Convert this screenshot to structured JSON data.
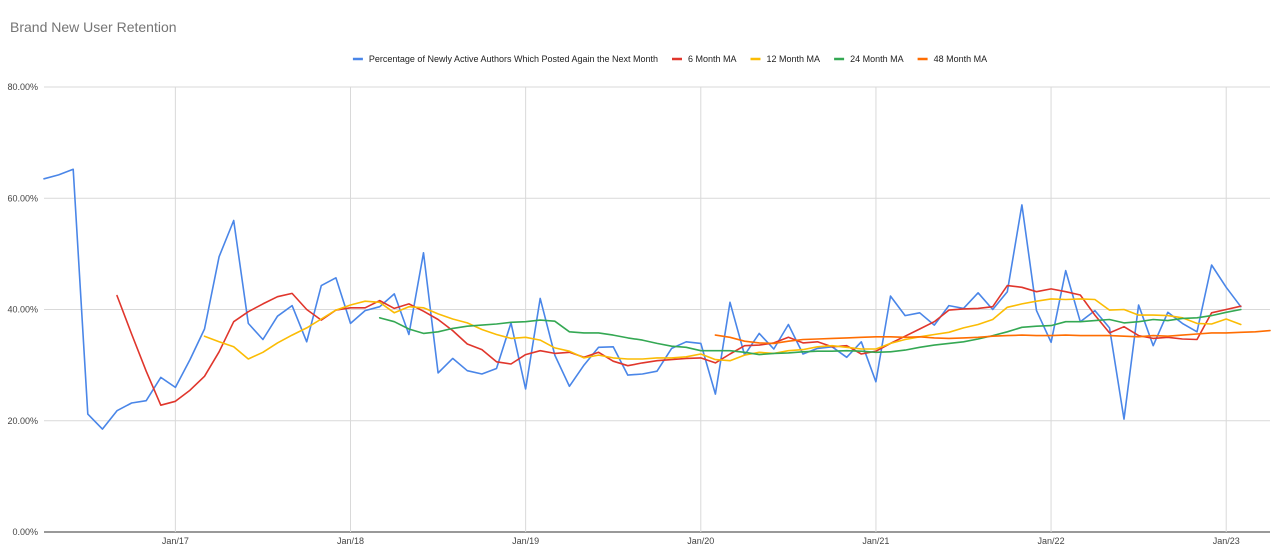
{
  "chart_data": {
    "type": "line",
    "title": "Brand New User Retention",
    "xlabel": "",
    "ylabel": "",
    "ylim": [
      0,
      80
    ],
    "yticks": [
      0,
      20,
      40,
      60,
      80
    ],
    "ytick_labels": [
      "0.00%",
      "20.00%",
      "40.00%",
      "60.00%",
      "80.00%"
    ],
    "x_range": [
      "2016-04",
      "2023-04"
    ],
    "xtick_dates": [
      "2017-01",
      "2018-01",
      "2019-01",
      "2020-01",
      "2021-01",
      "2022-01",
      "2023-01"
    ],
    "xtick_labels": [
      "Jan/17",
      "Jan/18",
      "Jan/19",
      "Jan/20",
      "Jan/21",
      "Jan/22",
      "Jan/23"
    ],
    "grid": true,
    "legend_position": "top-center",
    "series": [
      {
        "name": "Percentage of Newly Active Authors Which Posted Again the Next Month",
        "color": "#4a86e8",
        "start": "2016-04",
        "values": [
          63.5,
          64.2,
          65.2,
          21.2,
          18.5,
          21.8,
          23.2,
          23.6,
          27.8,
          26.0,
          31.0,
          36.5,
          49.5,
          56.0,
          37.5,
          34.6,
          38.8,
          40.7,
          34.2,
          44.3,
          45.7,
          37.5,
          39.8,
          40.5,
          42.8,
          35.5,
          50.2,
          28.6,
          31.2,
          29.0,
          28.4,
          29.4,
          37.6,
          25.7,
          42.0,
          31.8,
          26.2,
          30.0,
          33.2,
          33.3,
          28.2,
          28.4,
          28.9,
          33.0,
          34.2,
          33.9,
          24.8,
          41.3,
          31.8,
          35.7,
          32.9,
          37.3,
          32.0,
          33.0,
          33.3,
          31.4,
          34.2,
          27.0,
          42.4,
          38.9,
          39.4,
          37.2,
          40.7,
          40.2,
          43.0,
          40.0,
          43.2,
          58.8,
          39.8,
          34.1,
          47.0,
          37.8,
          39.8,
          36.7,
          20.3,
          40.8,
          33.5,
          39.5,
          37.5,
          36.0,
          48.0,
          44.0,
          40.5
        ]
      },
      {
        "name": "6 Month MA",
        "color": "#e0362c",
        "start": "2016-09",
        "values": [
          42.5,
          35.6,
          28.9,
          22.8,
          23.5,
          25.5,
          28.0,
          32.4,
          37.8,
          39.6,
          41.0,
          42.3,
          42.9,
          40.0,
          38.1,
          39.9,
          40.3,
          40.3,
          41.6,
          40.2,
          41.0,
          39.7,
          38.2,
          36.2,
          33.8,
          32.8,
          30.6,
          30.2,
          31.9,
          32.6,
          32.1,
          32.3,
          31.4,
          32.3,
          30.7,
          29.9,
          30.4,
          30.8,
          31.0,
          31.2,
          31.3,
          30.4,
          32.0,
          33.5,
          33.6,
          34.0,
          35.0,
          34.0,
          34.2,
          33.3,
          33.5,
          32.0,
          32.5,
          33.9,
          35.2,
          36.5,
          37.8,
          39.9,
          40.1,
          40.2,
          40.5,
          44.3,
          44.0,
          43.2,
          43.7,
          43.2,
          42.6,
          39.0,
          35.8,
          36.9,
          35.3,
          34.8,
          35.0,
          34.7,
          34.6,
          39.4,
          40.0,
          40.6
        ]
      },
      {
        "name": "12 Month MA",
        "color": "#fbbc04",
        "start": "2017-03",
        "values": [
          35.2,
          34.2,
          33.3,
          31.1,
          32.3,
          34.0,
          35.4,
          36.7,
          38.3,
          39.9,
          40.8,
          41.5,
          41.3,
          39.4,
          40.5,
          40.3,
          39.2,
          38.3,
          37.6,
          36.4,
          35.5,
          34.8,
          35.0,
          34.5,
          33.1,
          32.5,
          31.3,
          31.8,
          31.3,
          31.1,
          31.1,
          31.3,
          31.3,
          31.5,
          32.0,
          31.0,
          30.8,
          31.8,
          32.3,
          32.1,
          32.6,
          32.8,
          33.3,
          33.5,
          33.2,
          32.9,
          32.9,
          33.9,
          34.6,
          35.1,
          35.5,
          35.9,
          36.7,
          37.3,
          38.2,
          40.4,
          41.0,
          41.5,
          41.9,
          41.8,
          41.9,
          41.8,
          39.9,
          40.0,
          39.0,
          39.0,
          38.9,
          38.5,
          37.5,
          37.4,
          38.3,
          37.3
        ]
      },
      {
        "name": "24 Month MA",
        "color": "#34a853",
        "start": "2018-03",
        "values": [
          38.5,
          37.8,
          36.5,
          35.7,
          36.0,
          36.6,
          37.0,
          37.2,
          37.4,
          37.7,
          37.8,
          38.1,
          37.9,
          36.0,
          35.8,
          35.8,
          35.4,
          34.9,
          34.5,
          33.9,
          33.4,
          33.2,
          32.6,
          32.6,
          32.6,
          32.3,
          31.9,
          32.1,
          32.2,
          32.4,
          32.5,
          32.5,
          32.6,
          32.5,
          32.3,
          32.4,
          32.7,
          33.2,
          33.6,
          33.9,
          34.2,
          34.7,
          35.3,
          36.0,
          36.8,
          37.0,
          37.1,
          37.8,
          37.8,
          38.0,
          38.2,
          37.6,
          37.8,
          38.2,
          38.0,
          38.4,
          38.5,
          38.9,
          39.5,
          40.0
        ]
      },
      {
        "name": "48 Month MA",
        "color": "#ff6d01",
        "start": "2020-02",
        "values": [
          35.4,
          35.0,
          34.3,
          34.0,
          33.9,
          34.3,
          34.6,
          34.7,
          34.8,
          34.9,
          35.0,
          35.1,
          35.1,
          35.0,
          35.1,
          34.9,
          34.8,
          34.9,
          35.0,
          35.2,
          35.3,
          35.4,
          35.3,
          35.3,
          35.4,
          35.3,
          35.3,
          35.3,
          35.2,
          35.1,
          35.3,
          35.2,
          35.4,
          35.6,
          35.8,
          35.8,
          35.9,
          36.0,
          36.2
        ]
      }
    ]
  }
}
